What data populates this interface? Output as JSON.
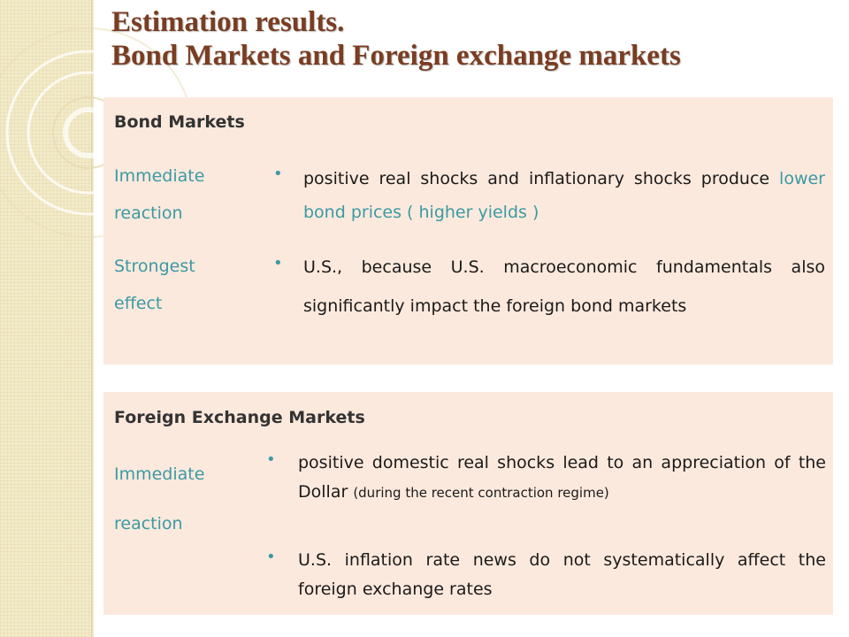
{
  "title": {
    "line1": "Estimation results.",
    "line2": "Bond Markets and Foreign exchange markets"
  },
  "bond_panel": {
    "heading": "Bond Markets",
    "rows": [
      {
        "label_line1": "Immediate",
        "label_line2": "reaction",
        "text_prefix": "positive real shocks and inflationary shocks produce ",
        "text_highlight": "lower bond prices ( higher yields )"
      },
      {
        "label_line1": "Strongest",
        "label_line2": "effect",
        "text": "U.S., because U.S. macroeconomic fundamentals also significantly impact the foreign bond markets"
      }
    ]
  },
  "fx_panel": {
    "heading": "Foreign Exchange Markets",
    "label_line1": "Immediate",
    "label_line2": "reaction",
    "bullets": [
      {
        "text": "positive domestic real shocks lead to an appreciation of the Dollar ",
        "note": "(during the recent contraction regime)"
      },
      {
        "text": "U.S. inflation rate news do not systematically affect the foreign exchange rates"
      }
    ]
  },
  "icons": {
    "bullet": "bullet-dot-icon",
    "decoration": "concentric-circles-decoration"
  },
  "colors": {
    "title": "#7a3d22",
    "accent": "#3b9aa3",
    "panel_bg": "#fce9dd",
    "strip_bg": "#f3ebc9"
  }
}
